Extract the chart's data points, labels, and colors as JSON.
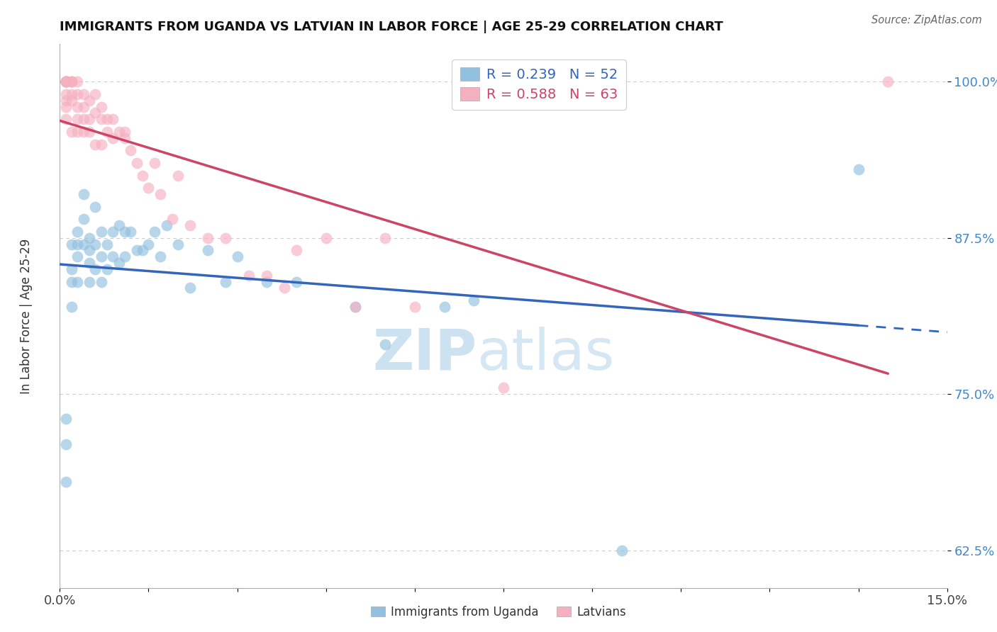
{
  "title": "IMMIGRANTS FROM UGANDA VS LATVIAN IN LABOR FORCE | AGE 25-29 CORRELATION CHART",
  "source": "Source: ZipAtlas.com",
  "ylabel": "In Labor Force | Age 25-29",
  "xlim": [
    0.0,
    0.15
  ],
  "ylim": [
    0.595,
    1.03
  ],
  "xticks": [
    0.0,
    0.015,
    0.03,
    0.045,
    0.06,
    0.075,
    0.09,
    0.105,
    0.12,
    0.135,
    0.15
  ],
  "xticklabels": [
    "0.0%",
    "",
    "",
    "",
    "",
    "",
    "",
    "",
    "",
    "",
    "15.0%"
  ],
  "yticks": [
    0.625,
    0.75,
    0.875,
    1.0
  ],
  "yticklabels": [
    "62.5%",
    "75.0%",
    "87.5%",
    "100.0%"
  ],
  "uganda_R": 0.239,
  "uganda_N": 52,
  "latvian_R": 0.588,
  "latvian_N": 63,
  "uganda_color": "#92c0e0",
  "latvian_color": "#f5b0c0",
  "uganda_line_color": "#3366bb",
  "latvian_line_color": "#cc4466",
  "legend_label_uganda": "Immigrants from Uganda",
  "legend_label_latvian": "Latvians",
  "uganda_x": [
    0.001,
    0.001,
    0.001,
    0.002,
    0.002,
    0.002,
    0.002,
    0.003,
    0.003,
    0.003,
    0.003,
    0.004,
    0.004,
    0.004,
    0.005,
    0.005,
    0.005,
    0.005,
    0.006,
    0.006,
    0.006,
    0.007,
    0.007,
    0.007,
    0.008,
    0.008,
    0.009,
    0.009,
    0.01,
    0.01,
    0.011,
    0.011,
    0.012,
    0.013,
    0.014,
    0.015,
    0.016,
    0.017,
    0.018,
    0.02,
    0.022,
    0.025,
    0.028,
    0.03,
    0.035,
    0.04,
    0.05,
    0.055,
    0.065,
    0.07,
    0.095,
    0.135
  ],
  "uganda_y": [
    0.73,
    0.71,
    0.68,
    0.87,
    0.85,
    0.84,
    0.82,
    0.88,
    0.87,
    0.86,
    0.84,
    0.91,
    0.89,
    0.87,
    0.875,
    0.865,
    0.855,
    0.84,
    0.9,
    0.87,
    0.85,
    0.88,
    0.86,
    0.84,
    0.87,
    0.85,
    0.88,
    0.86,
    0.885,
    0.855,
    0.88,
    0.86,
    0.88,
    0.865,
    0.865,
    0.87,
    0.88,
    0.86,
    0.885,
    0.87,
    0.835,
    0.865,
    0.84,
    0.86,
    0.84,
    0.84,
    0.82,
    0.79,
    0.82,
    0.825,
    0.625,
    0.93
  ],
  "latvian_x": [
    0.001,
    0.001,
    0.001,
    0.001,
    0.001,
    0.001,
    0.001,
    0.001,
    0.001,
    0.001,
    0.001,
    0.002,
    0.002,
    0.002,
    0.002,
    0.002,
    0.002,
    0.003,
    0.003,
    0.003,
    0.003,
    0.003,
    0.004,
    0.004,
    0.004,
    0.004,
    0.005,
    0.005,
    0.005,
    0.006,
    0.006,
    0.006,
    0.007,
    0.007,
    0.007,
    0.008,
    0.008,
    0.009,
    0.009,
    0.01,
    0.011,
    0.011,
    0.012,
    0.013,
    0.014,
    0.015,
    0.016,
    0.017,
    0.019,
    0.02,
    0.022,
    0.025,
    0.028,
    0.032,
    0.035,
    0.038,
    0.04,
    0.045,
    0.05,
    0.055,
    0.06,
    0.075,
    0.14
  ],
  "latvian_y": [
    1.0,
    1.0,
    1.0,
    1.0,
    1.0,
    1.0,
    1.0,
    0.99,
    0.985,
    0.98,
    0.97,
    1.0,
    1.0,
    1.0,
    0.99,
    0.985,
    0.96,
    1.0,
    0.99,
    0.98,
    0.97,
    0.96,
    0.99,
    0.98,
    0.97,
    0.96,
    0.985,
    0.97,
    0.96,
    0.99,
    0.975,
    0.95,
    0.98,
    0.97,
    0.95,
    0.97,
    0.96,
    0.97,
    0.955,
    0.96,
    0.96,
    0.955,
    0.945,
    0.935,
    0.925,
    0.915,
    0.935,
    0.91,
    0.89,
    0.925,
    0.885,
    0.875,
    0.875,
    0.845,
    0.845,
    0.835,
    0.865,
    0.875,
    0.82,
    0.875,
    0.82,
    0.755,
    1.0
  ],
  "watermark_zip": "ZIP",
  "watermark_atlas": "atlas",
  "background_color": "#ffffff",
  "grid_color": "#cccccc"
}
